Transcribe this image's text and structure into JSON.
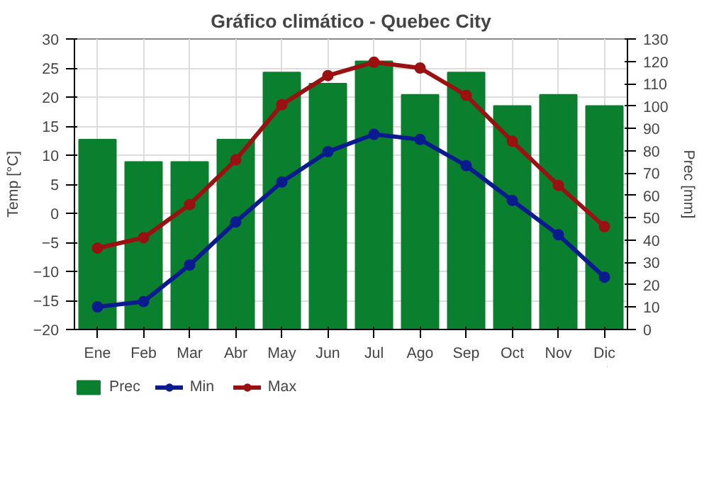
{
  "chart_data": {
    "type": "line",
    "title": "Gráfico climático - Quebec City",
    "ylabel": "Temp [°C]",
    "y2label": "Prec [mm]",
    "categories": [
      "Ene",
      "Feb",
      "Mar",
      "Abr",
      "May",
      "Jun",
      "Jul",
      "Ago",
      "Sep",
      "Oct",
      "Nov",
      "Dic"
    ],
    "series": [
      {
        "name": "Prec",
        "type": "bar",
        "axis": "y2",
        "color": "#0a7f2e",
        "values": [
          85,
          75,
          75,
          85,
          115,
          110,
          120,
          105,
          115,
          100,
          105,
          100
        ]
      },
      {
        "name": "Min",
        "color": "#0a1a8f",
        "values": [
          -16.1,
          -15.2,
          -8.9,
          -1.5,
          5.4,
          10.6,
          13.6,
          12.7,
          8.2,
          2.2,
          -3.7,
          -11
        ]
      },
      {
        "name": "Max",
        "color": "#9b1010",
        "values": [
          -6,
          -4.2,
          1.5,
          9.2,
          18.7,
          23.7,
          26,
          25,
          20.3,
          12.4,
          4.8,
          -2.3
        ]
      }
    ],
    "ylim": [
      -20,
      30
    ],
    "yticks": [
      -20,
      -15,
      -10,
      -5,
      0,
      5,
      10,
      15,
      20,
      25,
      30
    ],
    "y2lim": [
      0,
      130
    ],
    "y2ticks": [
      0,
      10,
      20,
      30,
      40,
      50,
      60,
      70,
      80,
      90,
      100,
      110,
      120,
      130
    ],
    "grid": true,
    "legend": "bottom",
    "marker": "circle",
    "line_style": "solid"
  }
}
